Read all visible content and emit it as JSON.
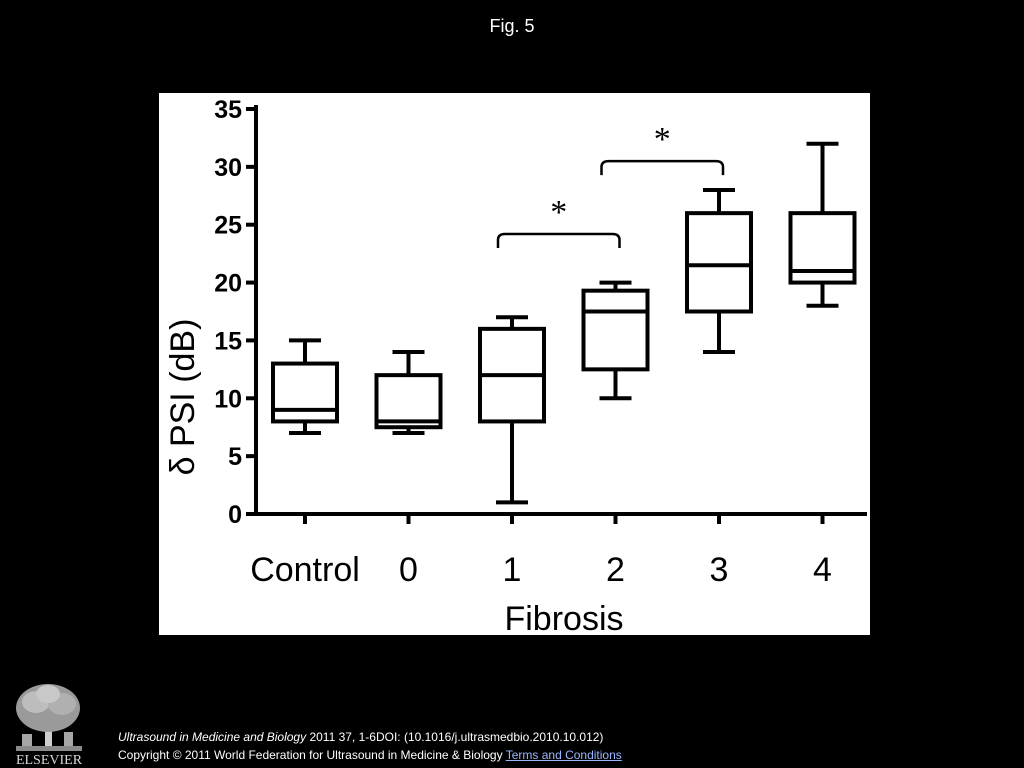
{
  "slide": {
    "title": "Fig. 5",
    "citation_journal": "Ultrasound in Medicine and Biology",
    "citation_rest": " 2011 37, 1-6DOI: (10.1016/j.ultrasmedbio.2010.10.012)",
    "copyright": "Copyright © 2011 World Federation for Ultrasound in Medicine & Biology ",
    "terms_link": "Terms and Conditions",
    "logo_text": "ELSEVIER"
  },
  "chart_data": {
    "type": "box",
    "title": "",
    "xlabel": "Fibrosis",
    "ylabel": "δ PSI (dB)",
    "ylim": [
      0,
      35
    ],
    "yticks": [
      0,
      5,
      10,
      15,
      20,
      25,
      30,
      35
    ],
    "grid": false,
    "categories": [
      "Control",
      "0",
      "1",
      "2",
      "3",
      "4"
    ],
    "boxes": [
      {
        "category": "Control",
        "min": 7,
        "q1": 8,
        "median": 9,
        "q3": 13,
        "max": 15
      },
      {
        "category": "0",
        "min": 7,
        "q1": 7.5,
        "median": 8,
        "q3": 12,
        "max": 14
      },
      {
        "category": "1",
        "min": 1,
        "q1": 8,
        "median": 12,
        "q3": 16,
        "max": 17
      },
      {
        "category": "2",
        "min": 10,
        "q1": 12.5,
        "median": 17.5,
        "q3": 19.3,
        "max": 20
      },
      {
        "category": "3",
        "min": 14,
        "q1": 17.5,
        "median": 21.5,
        "q3": 26,
        "max": 28
      },
      {
        "category": "4",
        "min": 18,
        "q1": 20,
        "median": 21,
        "q3": 26,
        "max": 32
      }
    ],
    "annotations": [
      {
        "label": "*",
        "from": "1",
        "to": "2",
        "y": 24.2
      },
      {
        "label": "*",
        "from": "2",
        "to": "3",
        "y": 30.5
      }
    ],
    "colors": {
      "box": "#000000",
      "background": "#ffffff"
    }
  }
}
